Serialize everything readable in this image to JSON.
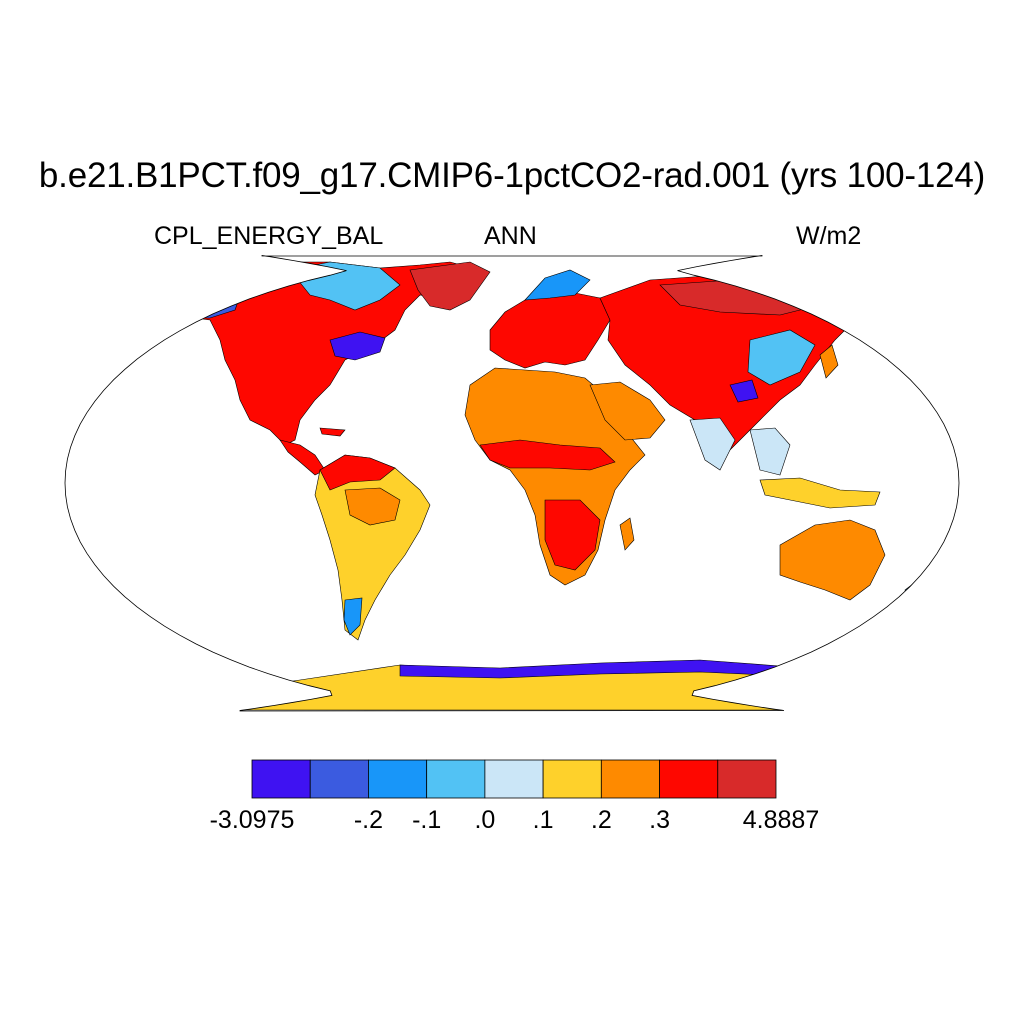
{
  "header": {
    "title": "b.e21.B1PCT.f09_g17.CMIP6-1pctCO2-rad.001 (yrs 100-124)",
    "variable": "CPL_ENERGY_BAL",
    "season": "ANN",
    "units": "W/m2"
  },
  "colorbar": {
    "colors": [
      "#3f12f2",
      "#3b5be0",
      "#1896f9",
      "#52c2f4",
      "#cbe6f7",
      "#fed12b",
      "#fe8a00",
      "#fe0700",
      "#d82a2a"
    ],
    "tick_labels": [
      "-3.0975",
      "-.2",
      "-.1",
      ".0",
      ".1",
      ".2",
      ".3",
      "4.8887"
    ],
    "range": [
      -3.0975,
      4.8887
    ]
  },
  "map": {
    "projection": "Robinson",
    "ocean_color": "#ffffff",
    "coastline_color": "#000000"
  }
}
